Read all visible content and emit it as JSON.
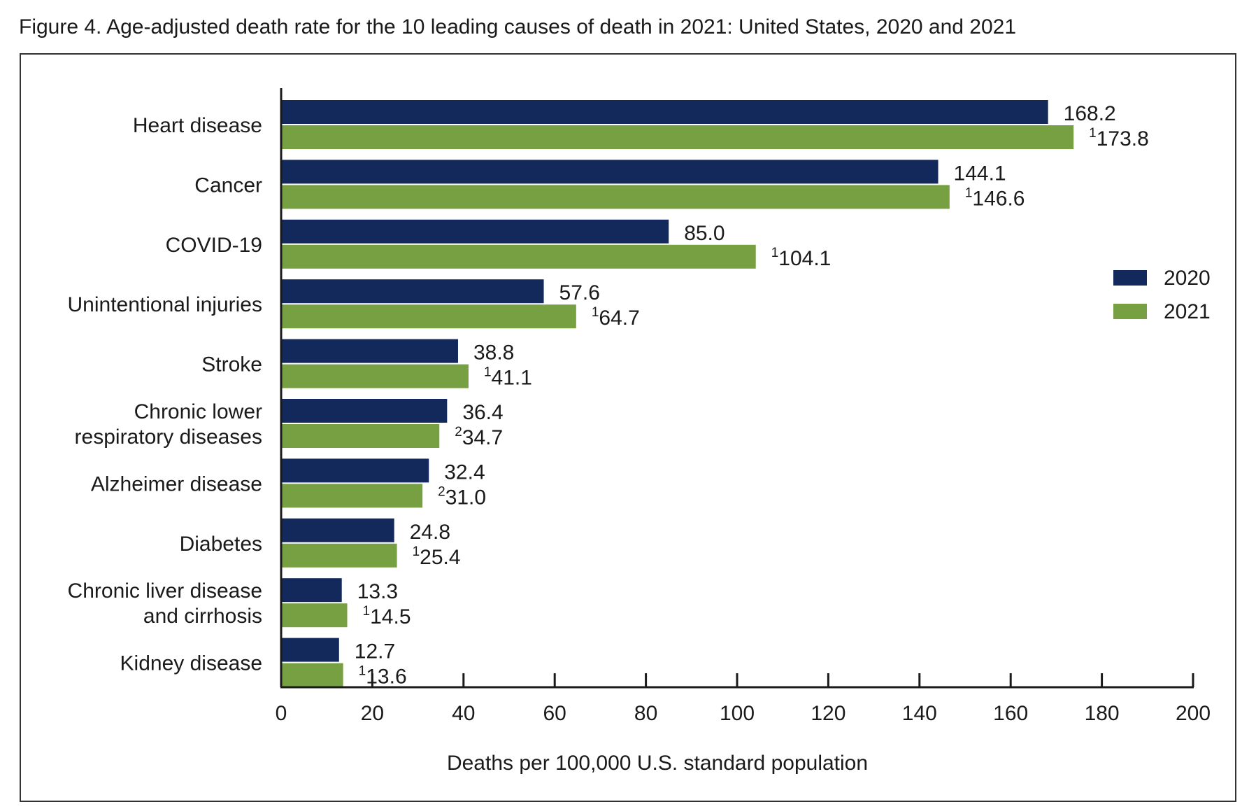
{
  "chart_data": {
    "type": "bar",
    "orientation": "horizontal",
    "title": "Figure 4. Age-adjusted death rate for the 10 leading causes of death in 2021: United States, 2020 and 2021",
    "xlabel": "Deaths per 100,000 U.S. standard population",
    "ylabel": "",
    "xlim": [
      0,
      200
    ],
    "xticks": [
      0,
      20,
      40,
      60,
      80,
      100,
      120,
      140,
      160,
      180,
      200
    ],
    "grid": false,
    "legend_position": "right",
    "categories": [
      [
        "Heart disease"
      ],
      [
        "Cancer"
      ],
      [
        "COVID-19"
      ],
      [
        "Unintentional injuries"
      ],
      [
        "Stroke"
      ],
      [
        "Chronic lower",
        "respiratory diseases"
      ],
      [
        "Alzheimer disease"
      ],
      [
        "Diabetes"
      ],
      [
        "Chronic liver disease",
        "and cirrhosis"
      ],
      [
        "Kidney disease"
      ]
    ],
    "series": [
      {
        "name": "2020",
        "color": "#13295b",
        "values": [
          168.2,
          144.1,
          85.0,
          57.6,
          38.8,
          36.4,
          32.4,
          24.8,
          13.3,
          12.7
        ],
        "labels": [
          "168.2",
          "144.1",
          "85.0",
          "57.6",
          "38.8",
          "36.4",
          "32.4",
          "24.8",
          "13.3",
          "12.7"
        ],
        "footnotes": [
          "",
          "",
          "",
          "",
          "",
          "",
          "",
          "",
          "",
          ""
        ]
      },
      {
        "name": "2021",
        "color": "#77a043",
        "values": [
          173.8,
          146.6,
          104.1,
          64.7,
          41.1,
          34.7,
          31.0,
          25.4,
          14.5,
          13.6
        ],
        "labels": [
          "173.8",
          "146.6",
          "104.1",
          "64.7",
          "41.1",
          "34.7",
          "31.0",
          "25.4",
          "14.5",
          "13.6"
        ],
        "footnotes": [
          "1",
          "1",
          "1",
          "1",
          "1",
          "2",
          "2",
          "1",
          "1",
          "1"
        ]
      }
    ]
  }
}
